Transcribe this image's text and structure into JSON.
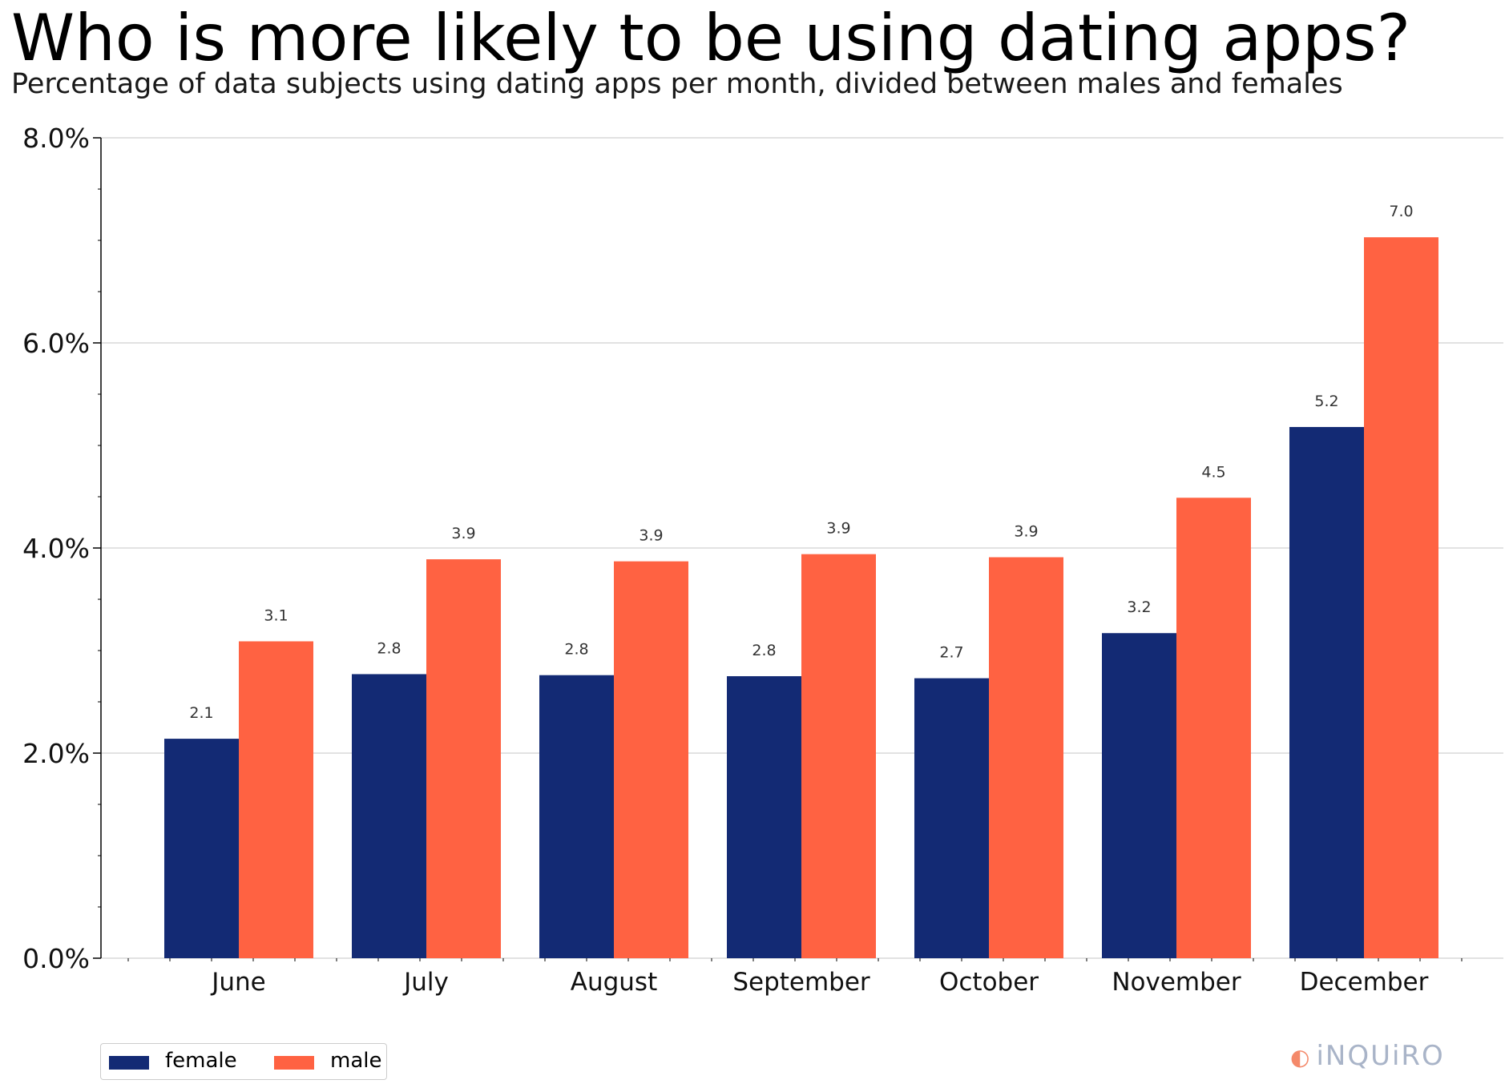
{
  "title": "Who is more likely to be using dating apps?",
  "subtitle": "Percentage of data subjects using dating apps per month, divided between males and females",
  "brand": "iNQUiRO",
  "colors": {
    "female": "#132a74",
    "male": "#ff6242"
  },
  "chart_data": {
    "type": "bar",
    "title": "Who is more likely to be using dating apps?",
    "subtitle": "Percentage of data subjects using dating apps per month, divided between males and females",
    "xlabel": "",
    "ylabel": "",
    "categories": [
      "June",
      "July",
      "August",
      "September",
      "October",
      "November",
      "December"
    ],
    "series": [
      {
        "name": "female",
        "color": "#132a74",
        "values": [
          2.14,
          2.77,
          2.76,
          2.75,
          2.73,
          3.17,
          5.18
        ],
        "labels": [
          "2.1",
          "2.8",
          "2.8",
          "2.8",
          "2.7",
          "3.2",
          "5.2"
        ]
      },
      {
        "name": "male",
        "color": "#ff6242",
        "values": [
          3.09,
          3.89,
          3.87,
          3.94,
          3.91,
          4.49,
          7.03
        ],
        "labels": [
          "3.1",
          "3.9",
          "3.9",
          "3.9",
          "3.9",
          "4.5",
          "7.0"
        ]
      }
    ],
    "ylim": [
      0,
      8
    ],
    "yticks": [
      0,
      2,
      4,
      6,
      8
    ],
    "ytick_labels": [
      "0.0%",
      "2.0%",
      "4.0%",
      "6.0%",
      "8.0%"
    ],
    "grid": true,
    "legend": {
      "position": "bottom-left",
      "entries": [
        "female",
        "male"
      ]
    }
  }
}
